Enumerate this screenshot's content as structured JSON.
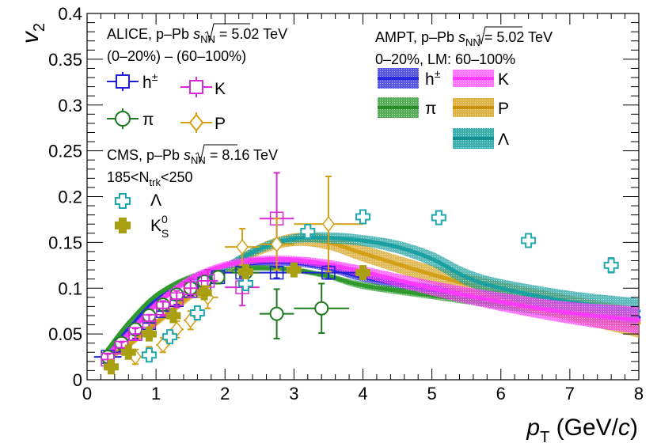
{
  "chart_data": {
    "type": "scatter",
    "title": "",
    "xlabel": {
      "prefix": "p",
      "sub": "T",
      "unit": " (GeV/",
      "c": "c",
      "close": ")"
    },
    "ylabel": {
      "main": "v",
      "sub": "2"
    },
    "xlim": [
      0,
      8
    ],
    "ylim": [
      0,
      0.4
    ],
    "xticks": [
      "0",
      "1",
      "2",
      "3",
      "4",
      "5",
      "6",
      "7",
      "8"
    ],
    "yticks": [
      "0",
      "0.05",
      "0.1",
      "0.15",
      "0.2",
      "0.25",
      "0.3",
      "0.35",
      "0.4"
    ],
    "colors": {
      "h": "#1f1fd6",
      "pi": "#1e7a1e",
      "K": "#d62bd6",
      "P": "#d4a017",
      "Lambda": "#1aa0a0",
      "Lambda_cms": "#20a8b0",
      "K0S": "#a8a010"
    },
    "annotations": {
      "alice_l1_pre": "ALICE, p–Pb ",
      "alice_l1_s": "s",
      "alice_l1_sub": "NN",
      "alice_l1_post": " = 5.02 TeV",
      "alice_l2": "(0–20%) – (60–100%)",
      "cms_l1_pre": "CMS, p–Pb ",
      "cms_l1_s": "s",
      "cms_l1_sub": "NN",
      "cms_l1_post": " = 8.16 TeV",
      "cms_l2_pre": "185<N",
      "cms_l2_sub": "trk",
      "cms_l2_post": "<250",
      "ampt_l1_pre": "AMPT, p–Pb ",
      "ampt_l1_s": "s",
      "ampt_l1_sub": "NN",
      "ampt_l1_post": " = 5.02 TeV",
      "ampt_l2": "0–20%, LM: 60–100%"
    },
    "legend": {
      "h_main": "h",
      "h_sup": "±",
      "pi": "π",
      "K": "K",
      "P": "P",
      "Lambda": "Λ",
      "K0S_main": "K",
      "K0S_sup": "0",
      "K0S_sub": "S"
    },
    "series": [
      {
        "name": "ALICE h±",
        "key": "h",
        "marker": "square",
        "points": [
          [
            0.3,
            0.025,
            0.2,
            0.006
          ],
          [
            0.5,
            0.037,
            0.1,
            0.006
          ],
          [
            0.7,
            0.05,
            0.1,
            0.005
          ],
          [
            0.9,
            0.062,
            0.1,
            0.005
          ],
          [
            1.1,
            0.075,
            0.1,
            0.005
          ],
          [
            1.3,
            0.087,
            0.1,
            0.005
          ],
          [
            1.5,
            0.097,
            0.1,
            0.005
          ],
          [
            1.7,
            0.105,
            0.1,
            0.005
          ],
          [
            1.9,
            0.112,
            0.1,
            0.005
          ],
          [
            2.25,
            0.117,
            0.25,
            0.005
          ],
          [
            2.75,
            0.117,
            0.25,
            0.006
          ],
          [
            3.5,
            0.117,
            0.5,
            0.007
          ]
        ]
      },
      {
        "name": "ALICE π",
        "key": "pi",
        "marker": "circle",
        "points": [
          [
            0.3,
            0.025,
            0.1,
            0.005
          ],
          [
            0.5,
            0.04,
            0.1,
            0.005
          ],
          [
            0.7,
            0.055,
            0.1,
            0.005
          ],
          [
            0.9,
            0.07,
            0.1,
            0.005
          ],
          [
            1.1,
            0.082,
            0.1,
            0.005
          ],
          [
            1.3,
            0.093,
            0.1,
            0.006
          ],
          [
            1.5,
            0.1,
            0.1,
            0.006
          ],
          [
            1.7,
            0.107,
            0.1,
            0.006
          ],
          [
            1.9,
            0.112,
            0.1,
            0.007
          ],
          [
            2.3,
            0.117,
            0.2,
            0.008
          ],
          [
            2.75,
            0.072,
            0.25,
            0.027
          ],
          [
            3.4,
            0.078,
            0.4,
            0.027
          ]
        ]
      },
      {
        "name": "ALICE K",
        "key": "K",
        "marker": "square",
        "points": [
          [
            0.3,
            0.022,
            0.1,
            0.006
          ],
          [
            0.5,
            0.035,
            0.1,
            0.006
          ],
          [
            0.7,
            0.05,
            0.1,
            0.006
          ],
          [
            0.9,
            0.064,
            0.1,
            0.007
          ],
          [
            1.1,
            0.078,
            0.1,
            0.008
          ],
          [
            1.3,
            0.088,
            0.1,
            0.009
          ],
          [
            1.5,
            0.1,
            0.1,
            0.01
          ],
          [
            1.75,
            0.108,
            0.15,
            0.012
          ],
          [
            2.25,
            0.101,
            0.25,
            0.02
          ],
          [
            2.75,
            0.176,
            0.25,
            0.05
          ]
        ]
      },
      {
        "name": "ALICE P",
        "key": "P",
        "marker": "diamond",
        "points": [
          [
            0.7,
            0.025,
            0.1,
            0.008
          ],
          [
            0.9,
            0.028,
            0.1,
            0.008
          ],
          [
            1.1,
            0.038,
            0.1,
            0.008
          ],
          [
            1.3,
            0.055,
            0.1,
            0.009
          ],
          [
            1.5,
            0.065,
            0.1,
            0.01
          ],
          [
            1.75,
            0.09,
            0.15,
            0.012
          ],
          [
            2.25,
            0.145,
            0.25,
            0.02
          ],
          [
            2.75,
            0.148,
            0.25,
            0.028
          ],
          [
            3.5,
            0.17,
            0.5,
            0.052
          ]
        ]
      },
      {
        "name": "CMS Λ",
        "key": "Lambda_cms",
        "marker": "cross",
        "points": [
          [
            0.9,
            0.027,
            0,
            0.003
          ],
          [
            1.2,
            0.047,
            0,
            0.003
          ],
          [
            1.6,
            0.073,
            0,
            0.003
          ],
          [
            2.3,
            0.105,
            0,
            0.003
          ],
          [
            3.2,
            0.162,
            0,
            0.004
          ],
          [
            4.0,
            0.178,
            0,
            0.005
          ],
          [
            5.1,
            0.177,
            0,
            0.006
          ],
          [
            6.4,
            0.152,
            0,
            0.007
          ],
          [
            7.6,
            0.125,
            0,
            0.008
          ]
        ]
      },
      {
        "name": "CMS K0S",
        "key": "K0S",
        "marker": "cross",
        "points": [
          [
            0.35,
            0.014,
            0,
            0.003
          ],
          [
            0.6,
            0.03,
            0,
            0.003
          ],
          [
            0.9,
            0.05,
            0,
            0.003
          ],
          [
            1.25,
            0.07,
            0,
            0.003
          ],
          [
            1.7,
            0.095,
            0,
            0.003
          ],
          [
            2.3,
            0.118,
            0,
            0.003
          ],
          [
            3.0,
            0.12,
            0,
            0.003
          ],
          [
            4.0,
            0.117,
            0,
            0.004
          ]
        ]
      }
    ],
    "bands": [
      {
        "name": "AMPT h±",
        "key": "h",
        "points": [
          [
            0.3,
            0.03
          ],
          [
            0.6,
            0.055
          ],
          [
            1.0,
            0.087
          ],
          [
            1.5,
            0.11
          ],
          [
            2.0,
            0.122
          ],
          [
            2.5,
            0.128
          ],
          [
            3.0,
            0.128
          ],
          [
            3.5,
            0.122
          ],
          [
            4.0,
            0.112
          ],
          [
            5.0,
            0.098
          ],
          [
            6.0,
            0.088
          ],
          [
            7.0,
            0.078
          ],
          [
            8.0,
            0.068
          ]
        ],
        "width": [
          0.004,
          0.004,
          0.004,
          0.004,
          0.004,
          0.004,
          0.004,
          0.004,
          0.005,
          0.006,
          0.007,
          0.008,
          0.009
        ]
      },
      {
        "name": "AMPT π",
        "key": "pi",
        "points": [
          [
            0.3,
            0.033
          ],
          [
            0.6,
            0.062
          ],
          [
            1.0,
            0.092
          ],
          [
            1.5,
            0.112
          ],
          [
            2.0,
            0.12
          ],
          [
            2.5,
            0.122
          ],
          [
            3.0,
            0.12
          ],
          [
            3.5,
            0.113
          ],
          [
            4.0,
            0.103
          ],
          [
            5.0,
            0.092
          ],
          [
            6.0,
            0.082
          ],
          [
            7.0,
            0.072
          ],
          [
            8.0,
            0.062
          ]
        ],
        "width": [
          0.003,
          0.003,
          0.003,
          0.003,
          0.003,
          0.003,
          0.003,
          0.003,
          0.004,
          0.004,
          0.005,
          0.006,
          0.007
        ]
      },
      {
        "name": "AMPT K",
        "key": "K",
        "points": [
          [
            0.3,
            0.027
          ],
          [
            0.6,
            0.05
          ],
          [
            1.0,
            0.082
          ],
          [
            1.5,
            0.11
          ],
          [
            2.0,
            0.125
          ],
          [
            2.5,
            0.131
          ],
          [
            3.0,
            0.131
          ],
          [
            3.5,
            0.126
          ],
          [
            4.0,
            0.118
          ],
          [
            5.0,
            0.1
          ],
          [
            6.0,
            0.085
          ],
          [
            7.0,
            0.073
          ],
          [
            8.0,
            0.065
          ]
        ],
        "width": [
          0.004,
          0.004,
          0.004,
          0.004,
          0.004,
          0.004,
          0.004,
          0.005,
          0.006,
          0.008,
          0.01,
          0.012,
          0.015
        ]
      },
      {
        "name": "AMPT P",
        "key": "P",
        "points": [
          [
            0.3,
            0.024
          ],
          [
            0.6,
            0.038
          ],
          [
            1.0,
            0.062
          ],
          [
            1.5,
            0.092
          ],
          [
            2.0,
            0.12
          ],
          [
            2.5,
            0.142
          ],
          [
            3.0,
            0.153
          ],
          [
            3.5,
            0.15
          ],
          [
            4.0,
            0.138
          ],
          [
            5.0,
            0.115
          ],
          [
            6.0,
            0.095
          ],
          [
            7.0,
            0.078
          ],
          [
            8.0,
            0.062
          ]
        ],
        "width": [
          0.004,
          0.004,
          0.004,
          0.005,
          0.005,
          0.006,
          0.007,
          0.008,
          0.009,
          0.01,
          0.012,
          0.014,
          0.016
        ]
      },
      {
        "name": "AMPT Λ",
        "key": "Lambda",
        "points": [
          [
            1.5,
            0.1
          ],
          [
            2.0,
            0.122
          ],
          [
            2.5,
            0.143
          ],
          [
            3.0,
            0.154
          ],
          [
            3.5,
            0.155
          ],
          [
            4.0,
            0.152
          ],
          [
            4.5,
            0.145
          ],
          [
            5.0,
            0.132
          ],
          [
            5.5,
            0.112
          ],
          [
            6.0,
            0.1
          ],
          [
            7.0,
            0.085
          ],
          [
            8.0,
            0.075
          ]
        ],
        "width": [
          0.005,
          0.005,
          0.005,
          0.005,
          0.006,
          0.006,
          0.007,
          0.008,
          0.009,
          0.01,
          0.012,
          0.014
        ]
      }
    ]
  }
}
